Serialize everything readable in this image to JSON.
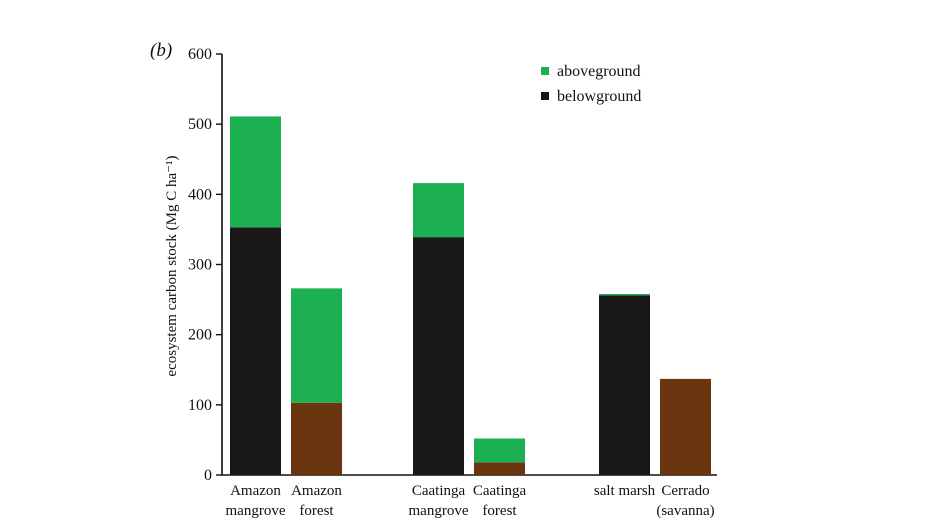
{
  "chart_data": {
    "type": "bar",
    "stacked": true,
    "panel_label": "(b)",
    "ylabel": "ecosystem carbon stock (Mg C ha⁻¹)",
    "ylim": [
      0,
      600
    ],
    "yticks": [
      0,
      100,
      200,
      300,
      400,
      500,
      600
    ],
    "grid": false,
    "legend_position": "top-right",
    "legend": [
      {
        "name": "aboveground",
        "color": "#1db052"
      },
      {
        "name": "belowground",
        "color": "#1a1718"
      }
    ],
    "categories": [
      {
        "label": [
          "Amazon",
          "mangrove"
        ],
        "group": 0,
        "below_color": "#1a1718",
        "below": 353,
        "above": 158
      },
      {
        "label": [
          "Amazon",
          "forest"
        ],
        "group": 0,
        "below_color": "#6b3510",
        "below": 103,
        "above": 163
      },
      {
        "label": [
          "Caatinga",
          "mangrove"
        ],
        "group": 1,
        "below_color": "#1a1718",
        "below": 339,
        "above": 77
      },
      {
        "label": [
          "Caatinga",
          "forest"
        ],
        "group": 1,
        "below_color": "#6b3510",
        "below": 18,
        "above": 34
      },
      {
        "label": [
          "salt marsh"
        ],
        "group": 2,
        "below_color": "#1a1718",
        "below": 256,
        "above": 2
      },
      {
        "label": [
          "Cerrado",
          "(savanna)"
        ],
        "group": 2,
        "below_color": "#6b3510",
        "below": 137,
        "above": 0
      }
    ],
    "above_color": "#1db052"
  }
}
